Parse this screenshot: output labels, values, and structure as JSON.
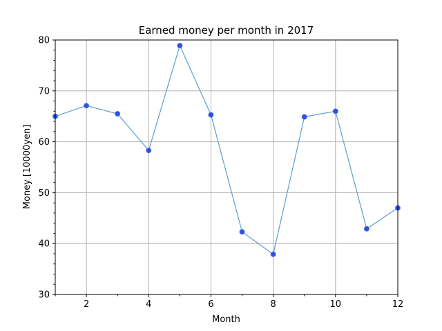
{
  "chart_data": {
    "type": "line",
    "title": "Earned money per month in 2017",
    "xlabel": "Month",
    "ylabel": "Money [10000yen]",
    "xlim": [
      1,
      12
    ],
    "ylim": [
      30,
      80
    ],
    "x_ticks": [
      2,
      4,
      6,
      8,
      10,
      12
    ],
    "x_minor_ticks": [
      1,
      3,
      5,
      7,
      9,
      11
    ],
    "y_ticks": [
      30,
      40,
      50,
      60,
      70,
      80
    ],
    "y_minor_ticks": [
      32,
      34,
      36,
      38,
      42,
      44,
      46,
      48,
      52,
      54,
      56,
      58,
      62,
      64,
      66,
      68,
      72,
      74,
      76,
      78
    ],
    "grid": true,
    "x": [
      1,
      2,
      3,
      4,
      5,
      6,
      7,
      8,
      9,
      10,
      11,
      12
    ],
    "series": [
      {
        "values": [
          65.0,
          67.1,
          65.5,
          58.3,
          78.9,
          65.3,
          42.3,
          37.9,
          64.9,
          66.0,
          42.9,
          47.0
        ],
        "line_color": "#5a9fd0",
        "marker_color": "#2e4fe0"
      }
    ]
  }
}
